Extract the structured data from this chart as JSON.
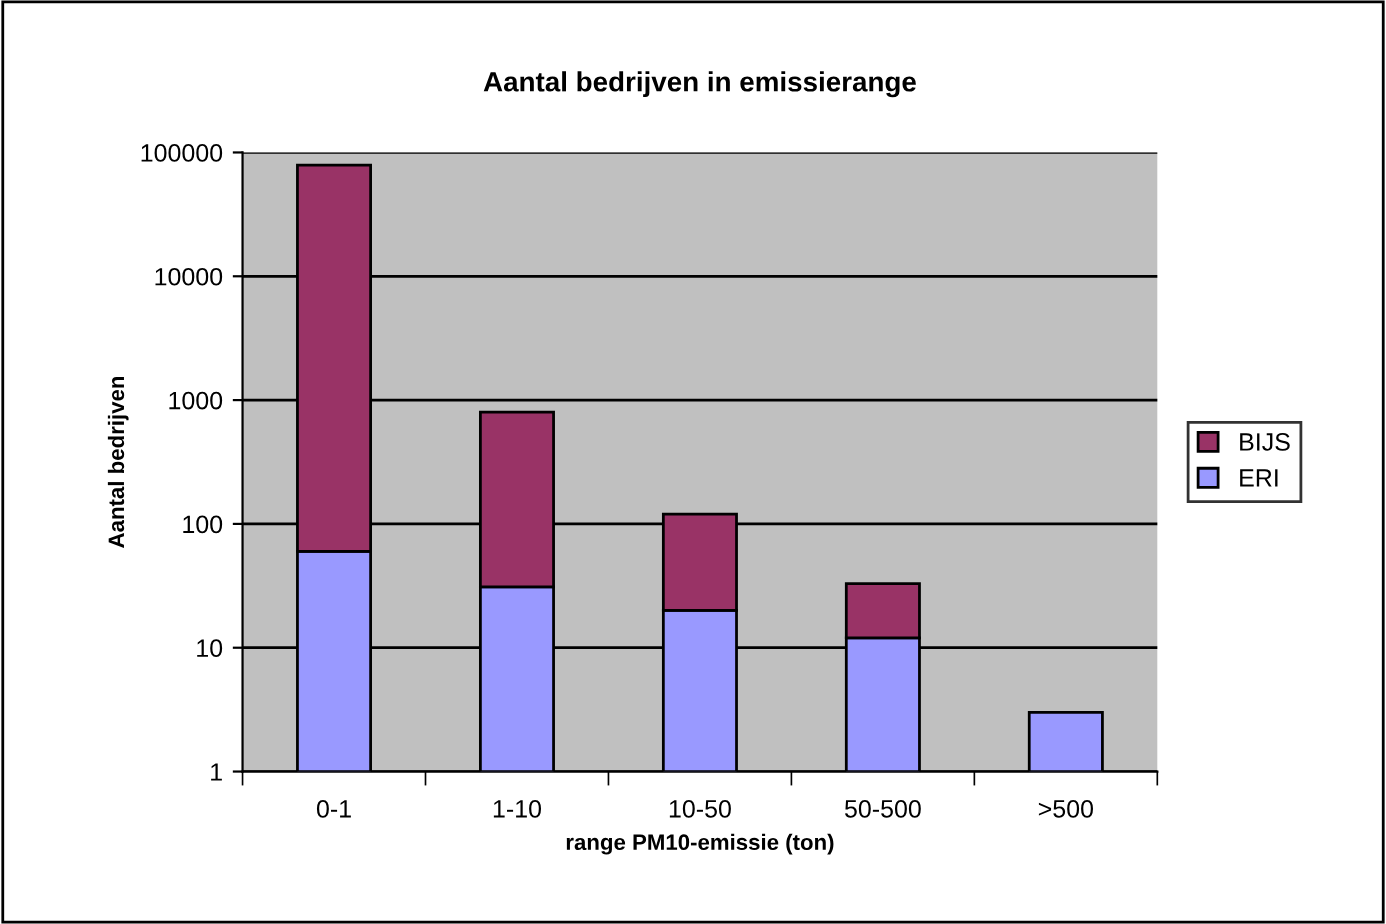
{
  "chart_data": {
    "type": "bar",
    "title": "Aantal bedrijven in emissierange",
    "xlabel": "range PM10-emissie (ton)",
    "ylabel": "Aantal bedrijven",
    "categories": [
      "0-1",
      "1-10",
      "10-50",
      "50-500",
      ">500"
    ],
    "stacked": true,
    "log": "y",
    "grid": "y",
    "legend": "right",
    "ylim": [
      1,
      100000
    ],
    "yticks": [
      1,
      10,
      100,
      1000,
      10000,
      100000
    ],
    "series": [
      {
        "name": "ERI",
        "color": "#9999ff",
        "values": [
          60,
          31,
          20,
          12,
          3
        ]
      },
      {
        "name": "BIJS",
        "color": "#993366",
        "values": [
          78900,
          770,
          100,
          21,
          null
        ]
      }
    ]
  }
}
